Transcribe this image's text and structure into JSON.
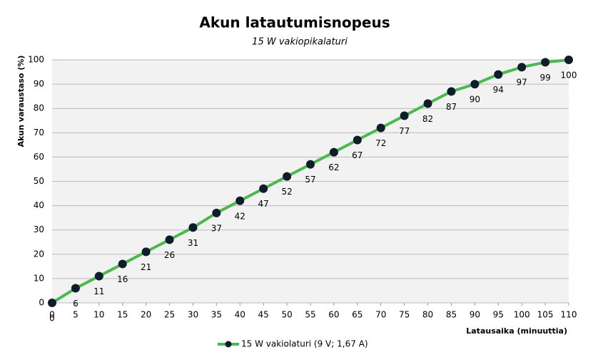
{
  "chart_data": {
    "type": "line",
    "title": "Akun latautumisnopeus",
    "subtitle": "15 W vakiopikalaturi",
    "ylabel": "Akun varaustaso (%)",
    "xlabel": "Latausaika  (minuuttia)",
    "x": [
      0,
      5,
      10,
      15,
      20,
      25,
      30,
      35,
      40,
      45,
      50,
      55,
      60,
      65,
      70,
      75,
      80,
      85,
      90,
      95,
      100,
      105,
      110
    ],
    "series": [
      {
        "name": "15 W vakiolaturi (9 V; 1,67 A)",
        "color": "#4cb84f",
        "marker_color": "#0f1c2b",
        "values": [
          0,
          6,
          11,
          16,
          21,
          26,
          31,
          37,
          42,
          47,
          52,
          57,
          62,
          67,
          72,
          77,
          82,
          87,
          90,
          94,
          97,
          99,
          100
        ]
      }
    ],
    "xlim": [
      0,
      110
    ],
    "ylim": [
      0,
      100
    ],
    "xticks": [
      0,
      5,
      10,
      15,
      20,
      25,
      30,
      35,
      40,
      45,
      50,
      55,
      60,
      65,
      70,
      75,
      80,
      85,
      90,
      95,
      100,
      105,
      110
    ],
    "yticks": [
      0,
      10,
      20,
      30,
      40,
      50,
      60,
      70,
      80,
      90,
      100
    ],
    "grid": true,
    "legend": "bottom"
  }
}
